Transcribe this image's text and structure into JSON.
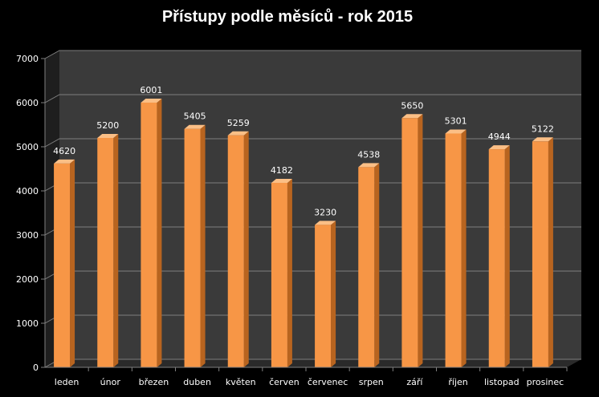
{
  "chart_data": {
    "type": "bar",
    "title": "Přístupy podle měsíců - rok 2015",
    "xlabel": "",
    "ylabel": "",
    "categories": [
      "leden",
      "únor",
      "březen",
      "duben",
      "květen",
      "červen",
      "červenec",
      "srpen",
      "září",
      "říjen",
      "listopad",
      "prosinec"
    ],
    "values": [
      4620,
      5200,
      6001,
      5405,
      5259,
      4182,
      3230,
      4538,
      5650,
      5301,
      4944,
      5122
    ],
    "ylim": [
      0,
      7000
    ],
    "yticks": [
      0,
      1000,
      2000,
      3000,
      4000,
      5000,
      6000,
      7000
    ],
    "grid": true,
    "legend": "none",
    "colors": {
      "background": "#000000",
      "plot_area": "#3a3a3a",
      "bar_front": "#f79646",
      "bar_side": "#b8641f",
      "bar_top": "#fbbf86",
      "gridline": "#7f7f7f",
      "text": "#ffffff"
    }
  }
}
